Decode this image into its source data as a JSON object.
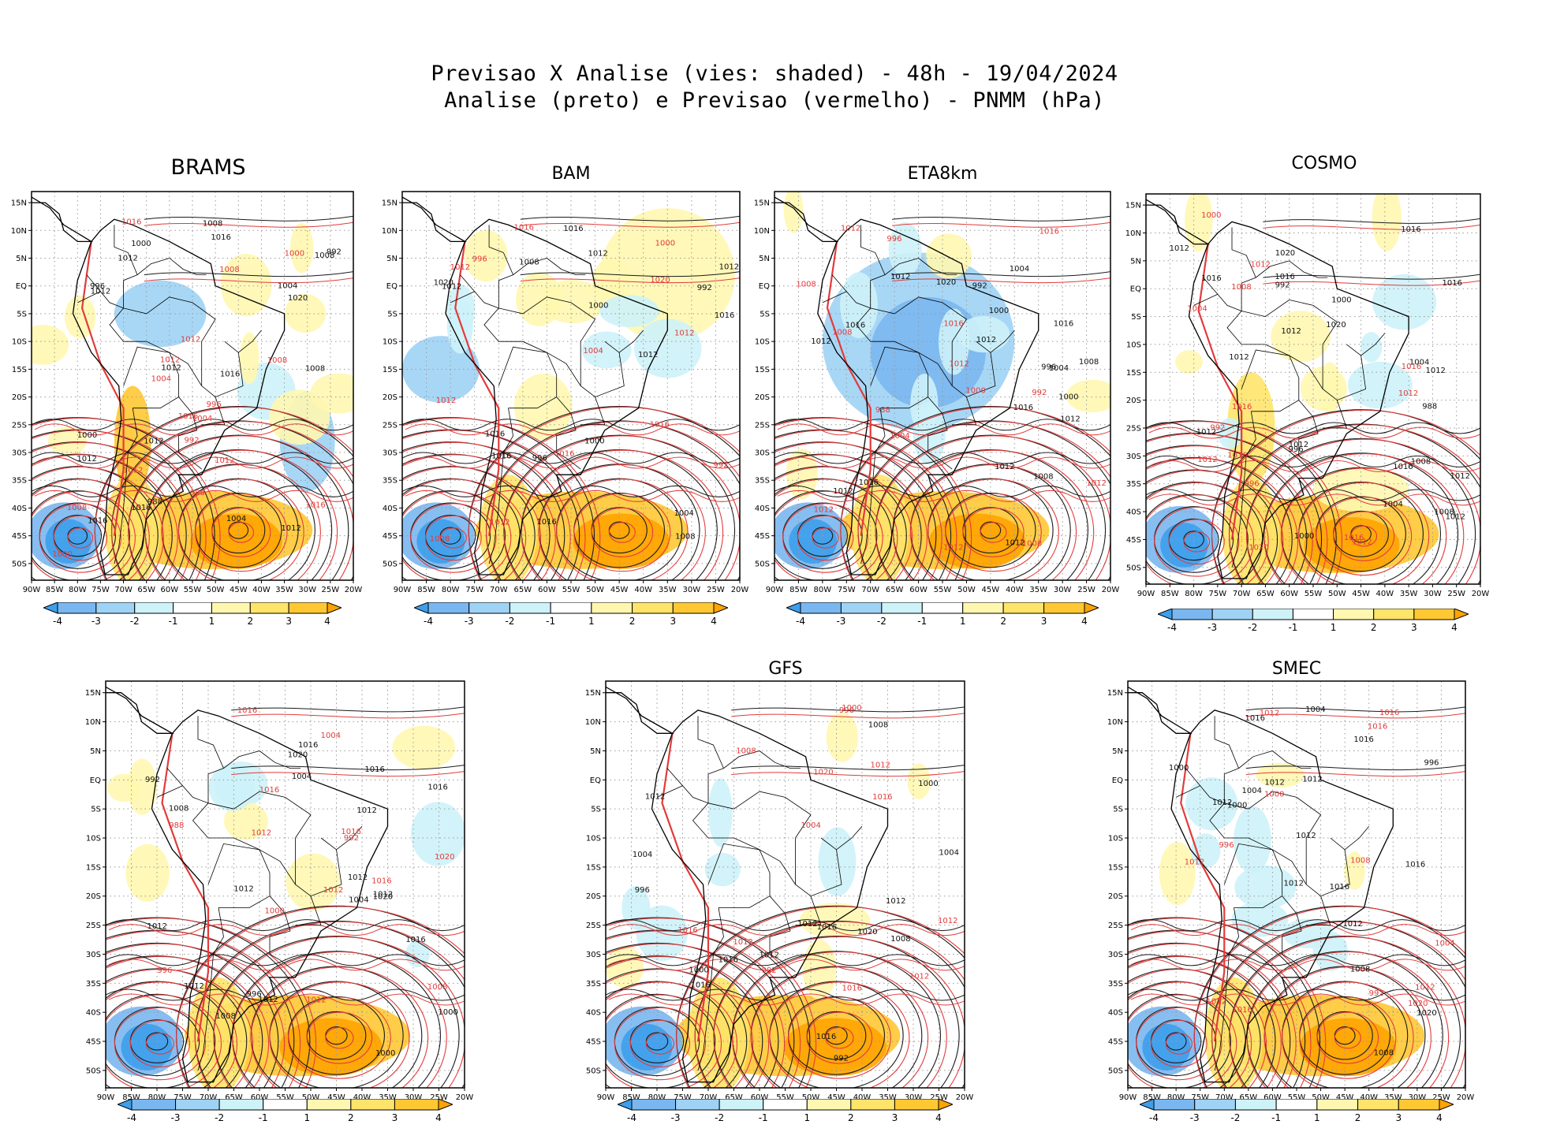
{
  "figure": {
    "title_line1": "Previsao X Analise (vies: shaded) - 48h - 19/04/2024",
    "title_line2": "Analise (preto) e Previsao (vermelho) - PNMM (hPa)"
  },
  "colors": {
    "analysis_contour": "#1a1a1a",
    "forecast_contour": "#e23b3b",
    "coast": "#000000",
    "grid": "#9a9a9a",
    "bias_colors": [
      "#3d9fec",
      "#7ab7f0",
      "#9fd3f5",
      "#cdf2f8",
      "#ffffff",
      "#fff7b0",
      "#ffe46a",
      "#ffc833",
      "#ffa400"
    ]
  },
  "axes": {
    "lat_labels": [
      "15N",
      "10N",
      "5N",
      "EQ",
      "5S",
      "10S",
      "15S",
      "20S",
      "25S",
      "30S",
      "35S",
      "40S",
      "45S",
      "50S"
    ],
    "lon_labels": [
      "90W",
      "85W",
      "80W",
      "75W",
      "70W",
      "65W",
      "60W",
      "55W",
      "50W",
      "45W",
      "40W",
      "35W",
      "30W",
      "25W",
      "20W"
    ]
  },
  "colorbar": {
    "labels": [
      "-4",
      "-3",
      "-2",
      "-1",
      "1",
      "2",
      "3",
      "4"
    ],
    "bounds": [
      -4,
      -3,
      -2,
      -1,
      1,
      2,
      3,
      4
    ]
  },
  "panels": [
    {
      "name": "BRAMS",
      "title": "BRAMS",
      "black_labels": [
        "1012",
        "1008",
        "1012",
        "1012",
        "1012",
        "1012",
        "1016",
        "1016",
        "1012",
        "1008",
        "1004",
        "1000",
        "996",
        "992",
        "988",
        "1016",
        "1016",
        "1020",
        "1008",
        "1004",
        "1000"
      ],
      "red_labels": [
        "1012",
        "1008",
        "1012",
        "1016",
        "1016",
        "1012",
        "1008",
        "1004",
        "1000",
        "996",
        "992",
        "988",
        "1016",
        "1012",
        "1008",
        "1004",
        "1000"
      ]
    },
    {
      "name": "BAM",
      "title": "BAM",
      "black_labels": [
        "1016",
        "1012",
        "1012",
        "1016",
        "1012",
        "1016",
        "1016",
        "1016",
        "1012",
        "1008",
        "1004",
        "1000",
        "996",
        "992",
        "1020",
        "1008",
        "1000"
      ],
      "red_labels": [
        "1012",
        "1012",
        "1012",
        "1016",
        "1016",
        "1020",
        "1016",
        "1012",
        "1008",
        "1004",
        "1000",
        "996",
        "992"
      ]
    },
    {
      "name": "ETA8km",
      "title": "ETA8km",
      "black_labels": [
        "1012",
        "1016",
        "1012",
        "1012",
        "1012",
        "1012",
        "1016",
        "1012",
        "1008",
        "1004",
        "1000",
        "996",
        "992",
        "1016",
        "1016",
        "1012",
        "1008",
        "1004",
        "1000",
        "1020"
      ],
      "red_labels": [
        "1012",
        "1012",
        "1008",
        "1012",
        "1008",
        "1012",
        "1016",
        "1016",
        "1012",
        "1008",
        "1004",
        "1000",
        "996",
        "992",
        "988"
      ]
    },
    {
      "name": "COSMO",
      "title": "COSMO",
      "black_labels": [
        "1012",
        "1012",
        "1012",
        "1012",
        "1016",
        "1012",
        "1012",
        "1016",
        "1020",
        "1016",
        "1016",
        "1012",
        "1008",
        "1004",
        "1000",
        "996",
        "992",
        "988",
        "1012",
        "1008",
        "1004",
        "1000",
        "1016",
        "1020"
      ],
      "red_labels": [
        "1012",
        "1012",
        "1012",
        "1016",
        "1016",
        "1020",
        "1016",
        "1012",
        "1008",
        "1004",
        "1000",
        "996",
        "992",
        "1016"
      ]
    },
    {
      "name": "UNNAMED",
      "title": "",
      "black_labels": [
        "1012",
        "1016",
        "1012",
        "1012",
        "1012",
        "1020",
        "1016",
        "1012",
        "1008",
        "1004",
        "1000",
        "996",
        "992",
        "1012",
        "1008",
        "1004",
        "1000",
        "1016",
        "1020",
        "1012",
        "1016"
      ],
      "red_labels": [
        "1012",
        "1016",
        "1016",
        "1012",
        "1016",
        "1012",
        "1008",
        "1004",
        "1000",
        "996",
        "992",
        "988",
        "1016",
        "1020"
      ]
    },
    {
      "name": "GFS",
      "title": "GFS",
      "black_labels": [
        "1012",
        "1016",
        "1012",
        "1012",
        "1016",
        "1016",
        "1012",
        "1008",
        "1004",
        "1000",
        "996",
        "992",
        "1016",
        "1020",
        "1008",
        "1004",
        "1000"
      ],
      "red_labels": [
        "1012",
        "1012",
        "1012",
        "1016",
        "1016",
        "1016",
        "1012",
        "1008",
        "1004",
        "1000",
        "996",
        "992",
        "1020"
      ]
    },
    {
      "name": "SMEC",
      "title": "SMEC",
      "black_labels": [
        "1012",
        "1016",
        "1012",
        "1012",
        "1012",
        "1016",
        "1016",
        "1012",
        "1008",
        "1004",
        "1000",
        "996",
        "1012",
        "1008",
        "1004",
        "1000",
        "1016",
        "1020"
      ],
      "red_labels": [
        "1012",
        "1012",
        "1012",
        "1016",
        "1016",
        "1016",
        "1012",
        "1008",
        "1004",
        "1000",
        "996",
        "992",
        "1020"
      ]
    }
  ]
}
